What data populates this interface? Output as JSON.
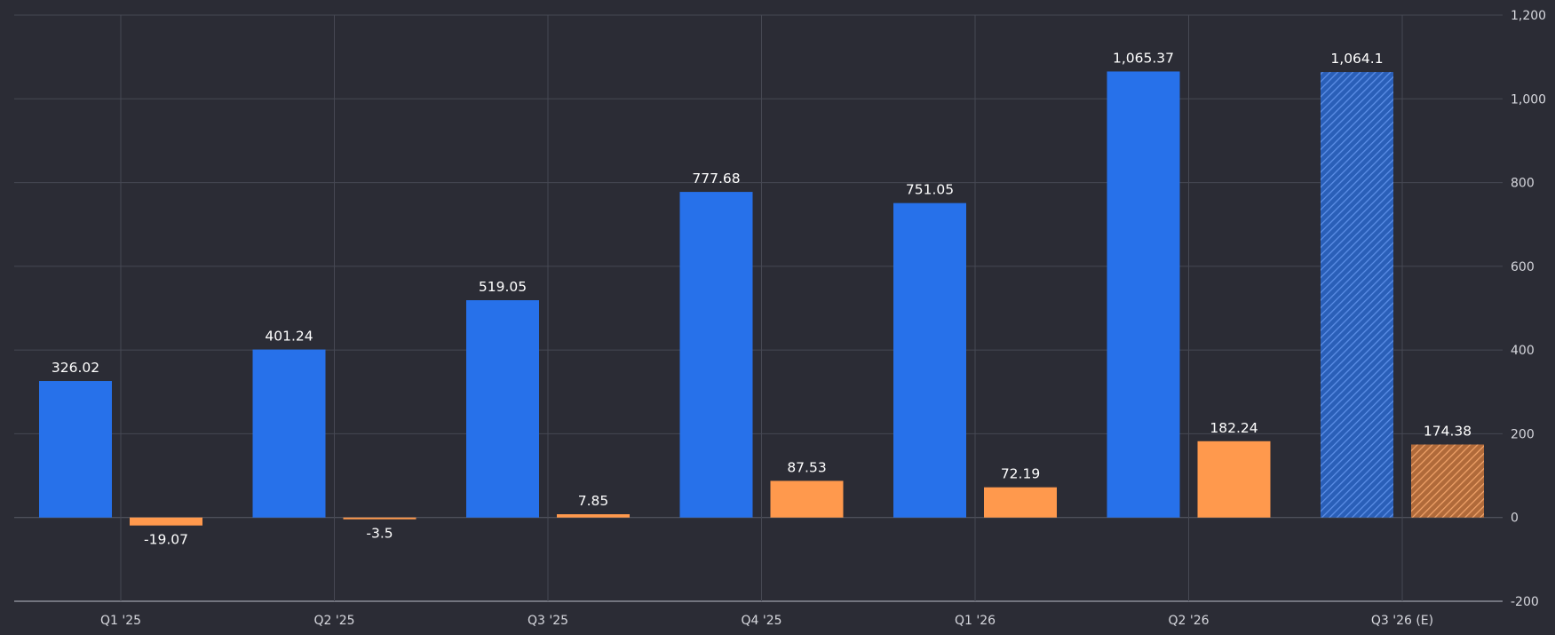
{
  "chart_data": {
    "type": "bar",
    "categories": [
      "Q1 '25",
      "Q2 '25",
      "Q3 '25",
      "Q4 '25",
      "Q1 '26",
      "Q2 '26",
      "Q3 '26 (E)"
    ],
    "series": [
      {
        "values": [
          326.02,
          401.24,
          519.05,
          777.68,
          751.05,
          1065.37,
          1064.1
        ],
        "labels": [
          "326.02",
          "401.24",
          "519.05",
          "777.68",
          "751.05",
          "1,065.37",
          "1,064.1"
        ],
        "color": "#2771ea"
      },
      {
        "values": [
          -19.07,
          -3.5,
          7.85,
          87.53,
          72.19,
          182.24,
          174.38
        ],
        "labels": [
          "-19.07",
          "-3.5",
          "7.85",
          "87.53",
          "72.19",
          "182.24",
          "174.38"
        ],
        "color": "#ff994d"
      }
    ],
    "estimate_category_index": 6,
    "ylim": [
      -200,
      1200
    ],
    "yticks": [
      -200,
      0,
      200,
      400,
      600,
      800,
      1000,
      1200
    ],
    "ytick_labels": [
      "-200",
      "0",
      "200",
      "400",
      "600",
      "800",
      "1,000",
      "1,200"
    ],
    "yaxis_position": "right",
    "grid": true,
    "legend": "none"
  },
  "colors": {
    "background": "#2b2c35",
    "grid": "#464853",
    "estimate_hatch_blue": "#4a7fd6",
    "estimate_hatch_orange": "#e59a5e"
  }
}
